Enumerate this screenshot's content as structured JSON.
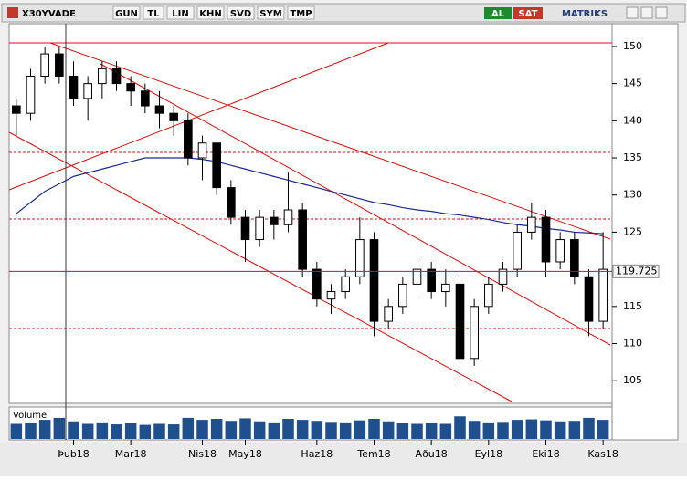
{
  "toolbar": {
    "symbol": "X30YVADE",
    "buttons": [
      "GUN",
      "TL",
      "LIN",
      "KHN",
      "SVD",
      "SYM",
      "TMP"
    ],
    "buy": "AL",
    "sell": "SAT",
    "brand": "MATRIKS"
  },
  "chart_data": {
    "type": "candlestick",
    "categories": [
      null,
      null,
      null,
      null,
      "Þub18",
      null,
      null,
      null,
      "Mar18",
      null,
      null,
      null,
      null,
      "Nis18",
      null,
      null,
      "May18",
      null,
      null,
      null,
      null,
      "Haz18",
      null,
      null,
      null,
      "Tem18",
      null,
      null,
      null,
      "Aðu18",
      null,
      null,
      null,
      "Eyl18",
      null,
      null,
      null,
      "Eki18",
      null,
      null,
      null,
      "Kas18"
    ],
    "open": [
      142,
      141,
      146,
      149,
      146,
      143,
      145,
      147,
      145,
      144,
      142,
      141,
      140,
      135,
      137,
      131,
      127,
      124,
      127,
      126,
      128,
      120,
      116,
      117,
      119,
      124,
      113,
      115,
      118,
      120,
      117,
      118,
      108,
      115,
      118,
      120,
      125,
      127,
      121,
      124,
      119,
      113
    ],
    "high": [
      143,
      147,
      150,
      150,
      148,
      146,
      148,
      148,
      146,
      145,
      144,
      142,
      141,
      138,
      137,
      132,
      128,
      128,
      128,
      133,
      129,
      121,
      118,
      120,
      127,
      125,
      116,
      119,
      121,
      121,
      120,
      119,
      116,
      119,
      121,
      126,
      129,
      128,
      125,
      125,
      120,
      125
    ],
    "low": [
      138,
      140,
      145,
      145,
      142,
      140,
      143,
      144,
      142,
      141,
      139,
      138,
      134,
      132,
      130,
      126,
      121,
      123,
      124,
      125,
      119,
      115,
      114,
      116,
      118,
      111,
      112,
      114,
      116,
      116,
      115,
      105,
      107,
      114,
      117,
      119,
      124,
      119,
      120,
      118,
      111,
      112
    ],
    "close": [
      141,
      146,
      149,
      146,
      143,
      145,
      147,
      145,
      144,
      142,
      141,
      140,
      135,
      137,
      131,
      127,
      124,
      127,
      126,
      128,
      120,
      116,
      117,
      119,
      124,
      113,
      115,
      118,
      120,
      117,
      118,
      108,
      115,
      118,
      120,
      125,
      127,
      121,
      124,
      119,
      113,
      120
    ],
    "moving_average": {
      "color": "#1c2a8c",
      "values": [
        127.5,
        129,
        130.5,
        131.5,
        132.5,
        133,
        133.5,
        134,
        134.5,
        135,
        135,
        135,
        135,
        134.8,
        134.5,
        134,
        133.5,
        133,
        132.5,
        132,
        131.5,
        131,
        130.5,
        130,
        129.5,
        129,
        128.7,
        128.3,
        128,
        127.8,
        127.5,
        127.3,
        127,
        126.7,
        126.3,
        126,
        125.8,
        125.5,
        125.3,
        125,
        124.9,
        124.8
      ]
    },
    "last_price": 119.725,
    "ylim": [
      102.2,
      153.8
    ],
    "yticks": [
      105,
      110,
      115,
      125,
      130,
      135,
      140,
      145,
      150
    ],
    "volume": {
      "label": "Volume",
      "color": "#1f4f8c",
      "ylim": [
        0,
        600000
      ],
      "values": [
        300000,
        320000,
        380000,
        420000,
        350000,
        300000,
        330000,
        290000,
        310000,
        280000,
        300000,
        290000,
        420000,
        380000,
        400000,
        360000,
        410000,
        350000,
        330000,
        400000,
        380000,
        360000,
        340000,
        330000,
        370000,
        400000,
        350000,
        310000,
        300000,
        320000,
        300000,
        450000,
        360000,
        330000,
        340000,
        380000,
        390000,
        370000,
        350000,
        360000,
        420000,
        380000
      ]
    }
  }
}
